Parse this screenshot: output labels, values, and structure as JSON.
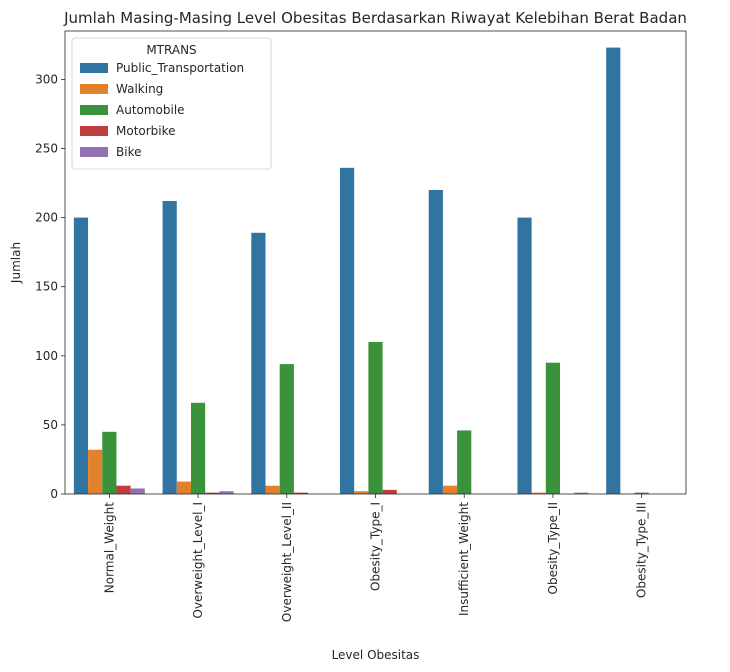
{
  "chart_data": {
    "type": "bar",
    "title": "Jumlah Masing-Masing Level Obesitas Berdasarkan Riwayat Kelebihan Berat Badan",
    "xlabel": "Level Obesitas",
    "ylabel": "Jumlah",
    "ylim": [
      0,
      335
    ],
    "yticks": [
      0,
      50,
      100,
      150,
      200,
      250,
      300
    ],
    "grid": false,
    "legend": {
      "title": "MTRANS",
      "placement": "top-left"
    },
    "categories": [
      "Normal_Weight",
      "Overweight_Level_I",
      "Overweight_Level_II",
      "Obesity_Type_I",
      "Insufficient_Weight",
      "Obesity_Type_II",
      "Obesity_Type_III"
    ],
    "series": [
      {
        "name": "Public_Transportation",
        "color": "#3274a1",
        "values": [
          200,
          212,
          189,
          236,
          220,
          200,
          323
        ]
      },
      {
        "name": "Walking",
        "color": "#e1812c",
        "values": [
          32,
          9,
          6,
          2,
          6,
          1,
          0
        ]
      },
      {
        "name": "Automobile",
        "color": "#3a923a",
        "values": [
          45,
          66,
          94,
          110,
          46,
          95,
          1
        ]
      },
      {
        "name": "Motorbike",
        "color": "#c03d3e",
        "values": [
          6,
          1,
          1,
          3,
          0,
          0,
          0
        ]
      },
      {
        "name": "Bike",
        "color": "#9372b2",
        "values": [
          4,
          2,
          0,
          0,
          0,
          1,
          0
        ]
      }
    ]
  }
}
